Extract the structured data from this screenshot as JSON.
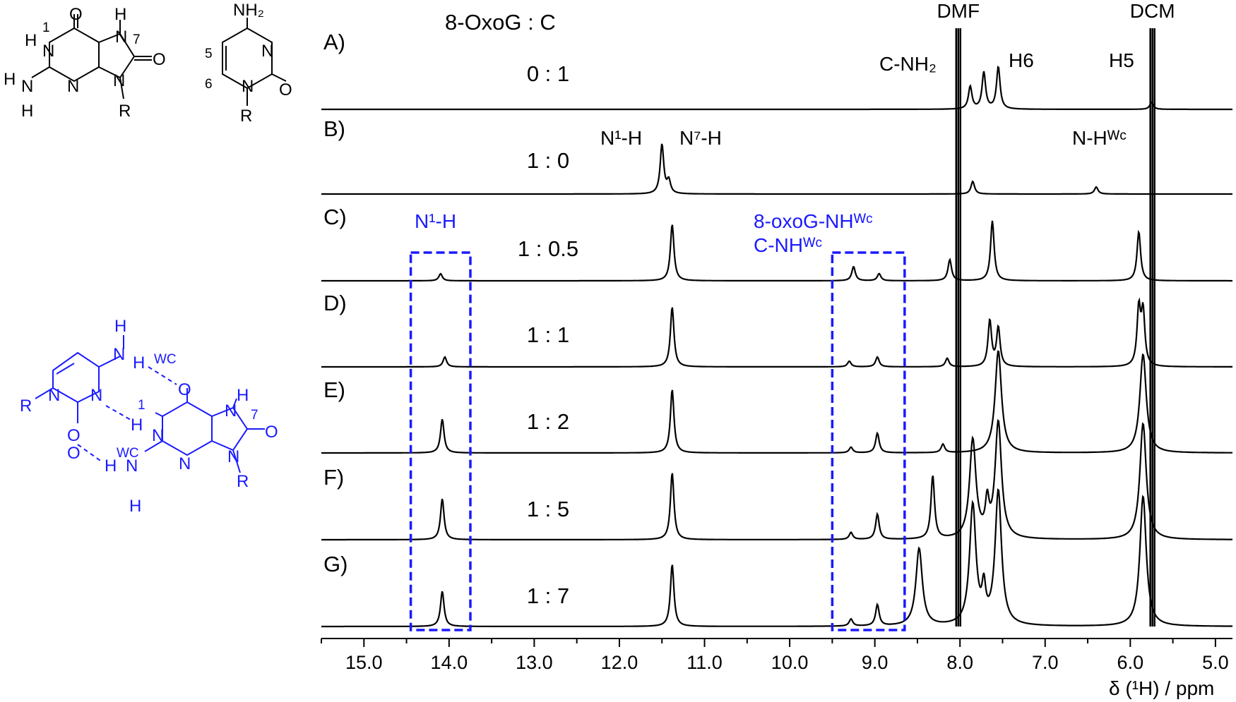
{
  "chart_data": {
    "type": "line",
    "title": "8-OxoG : C",
    "xlabel": "δ (¹H) / ppm",
    "xlim": [
      15.5,
      4.8
    ],
    "x_reversed": true,
    "x_ticks": [
      "15.0",
      "14.0",
      "13.0",
      "12.0",
      "11.0",
      "10.0",
      "9.0",
      "8.0",
      "7.0",
      "6.0",
      "5.0"
    ],
    "x_tick_values": [
      15,
      14,
      13,
      12,
      11,
      10,
      9,
      8,
      7,
      6,
      5
    ],
    "grid": false,
    "series": [
      {
        "name": "A)",
        "ratio": "0 : 1",
        "peaks": [
          {
            "ppm": 7.55,
            "h": 60
          },
          {
            "ppm": 7.72,
            "h": 52
          },
          {
            "ppm": 7.88,
            "h": 32
          },
          {
            "ppm": 5.75,
            "h": 10
          }
        ]
      },
      {
        "name": "B)",
        "ratio": "1 : 0",
        "peaks": [
          {
            "ppm": 11.5,
            "h": 70
          },
          {
            "ppm": 11.42,
            "h": 18
          },
          {
            "ppm": 7.85,
            "h": 18
          },
          {
            "ppm": 6.4,
            "h": 10
          }
        ]
      },
      {
        "name": "C)",
        "ratio": "1 : 0.5",
        "peaks": [
          {
            "ppm": 14.1,
            "h": 10
          },
          {
            "ppm": 11.38,
            "h": 80
          },
          {
            "ppm": 9.25,
            "h": 20
          },
          {
            "ppm": 8.95,
            "h": 10
          },
          {
            "ppm": 8.12,
            "h": 30
          },
          {
            "ppm": 7.62,
            "h": 85
          },
          {
            "ppm": 5.9,
            "h": 70
          }
        ]
      },
      {
        "name": "D)",
        "ratio": "1 : 1",
        "peaks": [
          {
            "ppm": 14.05,
            "h": 14
          },
          {
            "ppm": 11.38,
            "h": 85
          },
          {
            "ppm": 9.3,
            "h": 8
          },
          {
            "ppm": 8.97,
            "h": 14
          },
          {
            "ppm": 8.15,
            "h": 12
          },
          {
            "ppm": 7.65,
            "h": 65
          },
          {
            "ppm": 7.55,
            "h": 55
          },
          {
            "ppm": 5.9,
            "h": 80
          },
          {
            "ppm": 5.85,
            "h": 75
          }
        ]
      },
      {
        "name": "E)",
        "ratio": "1 : 2",
        "peaks": [
          {
            "ppm": 14.08,
            "h": 48
          },
          {
            "ppm": 11.38,
            "h": 90
          },
          {
            "ppm": 9.28,
            "h": 8
          },
          {
            "ppm": 8.97,
            "h": 28
          },
          {
            "ppm": 8.2,
            "h": 12
          },
          {
            "ppm": 7.55,
            "h": 145
          },
          {
            "ppm": 5.85,
            "h": 140
          }
        ]
      },
      {
        "name": "F)",
        "ratio": "1 : 5",
        "peaks": [
          {
            "ppm": 14.08,
            "h": 58
          },
          {
            "ppm": 11.38,
            "h": 95
          },
          {
            "ppm": 9.28,
            "h": 10
          },
          {
            "ppm": 8.97,
            "h": 36
          },
          {
            "ppm": 8.32,
            "h": 90
          },
          {
            "ppm": 7.85,
            "h": 140
          },
          {
            "ppm": 7.68,
            "h": 45
          },
          {
            "ppm": 7.55,
            "h": 165
          },
          {
            "ppm": 5.85,
            "h": 165
          }
        ]
      },
      {
        "name": "G)",
        "ratio": "1 : 7",
        "peaks": [
          {
            "ppm": 14.08,
            "h": 50
          },
          {
            "ppm": 11.38,
            "h": 88
          },
          {
            "ppm": 9.28,
            "h": 10
          },
          {
            "ppm": 8.97,
            "h": 30
          },
          {
            "ppm": 8.48,
            "h": 110
          },
          {
            "ppm": 7.85,
            "h": 170
          },
          {
            "ppm": 7.72,
            "h": 45
          },
          {
            "ppm": 7.55,
            "h": 190
          },
          {
            "ppm": 5.85,
            "h": 185
          }
        ]
      }
    ],
    "solvent_peaks": [
      {
        "name": "DMF",
        "ppm": 8.02
      },
      {
        "name": "DCM",
        "ppm": 5.74
      }
    ],
    "annotations": {
      "a_nh2": "C-NH₂",
      "a_h6": "H6",
      "a_h5": "H5",
      "b_n1h": "N¹-H",
      "b_n7h": "N⁷-H",
      "b_nhwc": "N-Hᵂᶜ",
      "c_n1h_box": "N¹-H",
      "c_nhwc_box_line1": "8-oxoG-NHᵂᶜ",
      "c_nhwc_box_line2": "C-NHᵂᶜ"
    },
    "highlight_boxes": [
      {
        "x_from": 14.45,
        "x_to": 13.75
      },
      {
        "x_from": 9.5,
        "x_to": 8.65
      }
    ],
    "colors": {
      "trace": "#000000",
      "highlight": "#1a1aff"
    }
  },
  "structures": {
    "oxog_atoms": [
      "O",
      "H",
      "N",
      "N",
      "H",
      "N",
      "O",
      "H",
      "N",
      "N",
      "N",
      "H",
      "R"
    ],
    "oxog_numbers": [
      "1",
      "7"
    ],
    "cyt_atoms": [
      "NH₂",
      "N",
      "O",
      "N",
      "R"
    ],
    "cyt_numbers": [
      "5",
      "6"
    ],
    "pair_atoms": [
      "H",
      "N",
      "H",
      "N",
      "R",
      "N",
      "O",
      "O",
      "N",
      "H",
      "O",
      "N",
      "N",
      "H",
      "N",
      "H",
      "N",
      "R",
      "H",
      "O"
    ],
    "pair_labels": [
      "WC",
      "1",
      "WC",
      "7"
    ]
  }
}
